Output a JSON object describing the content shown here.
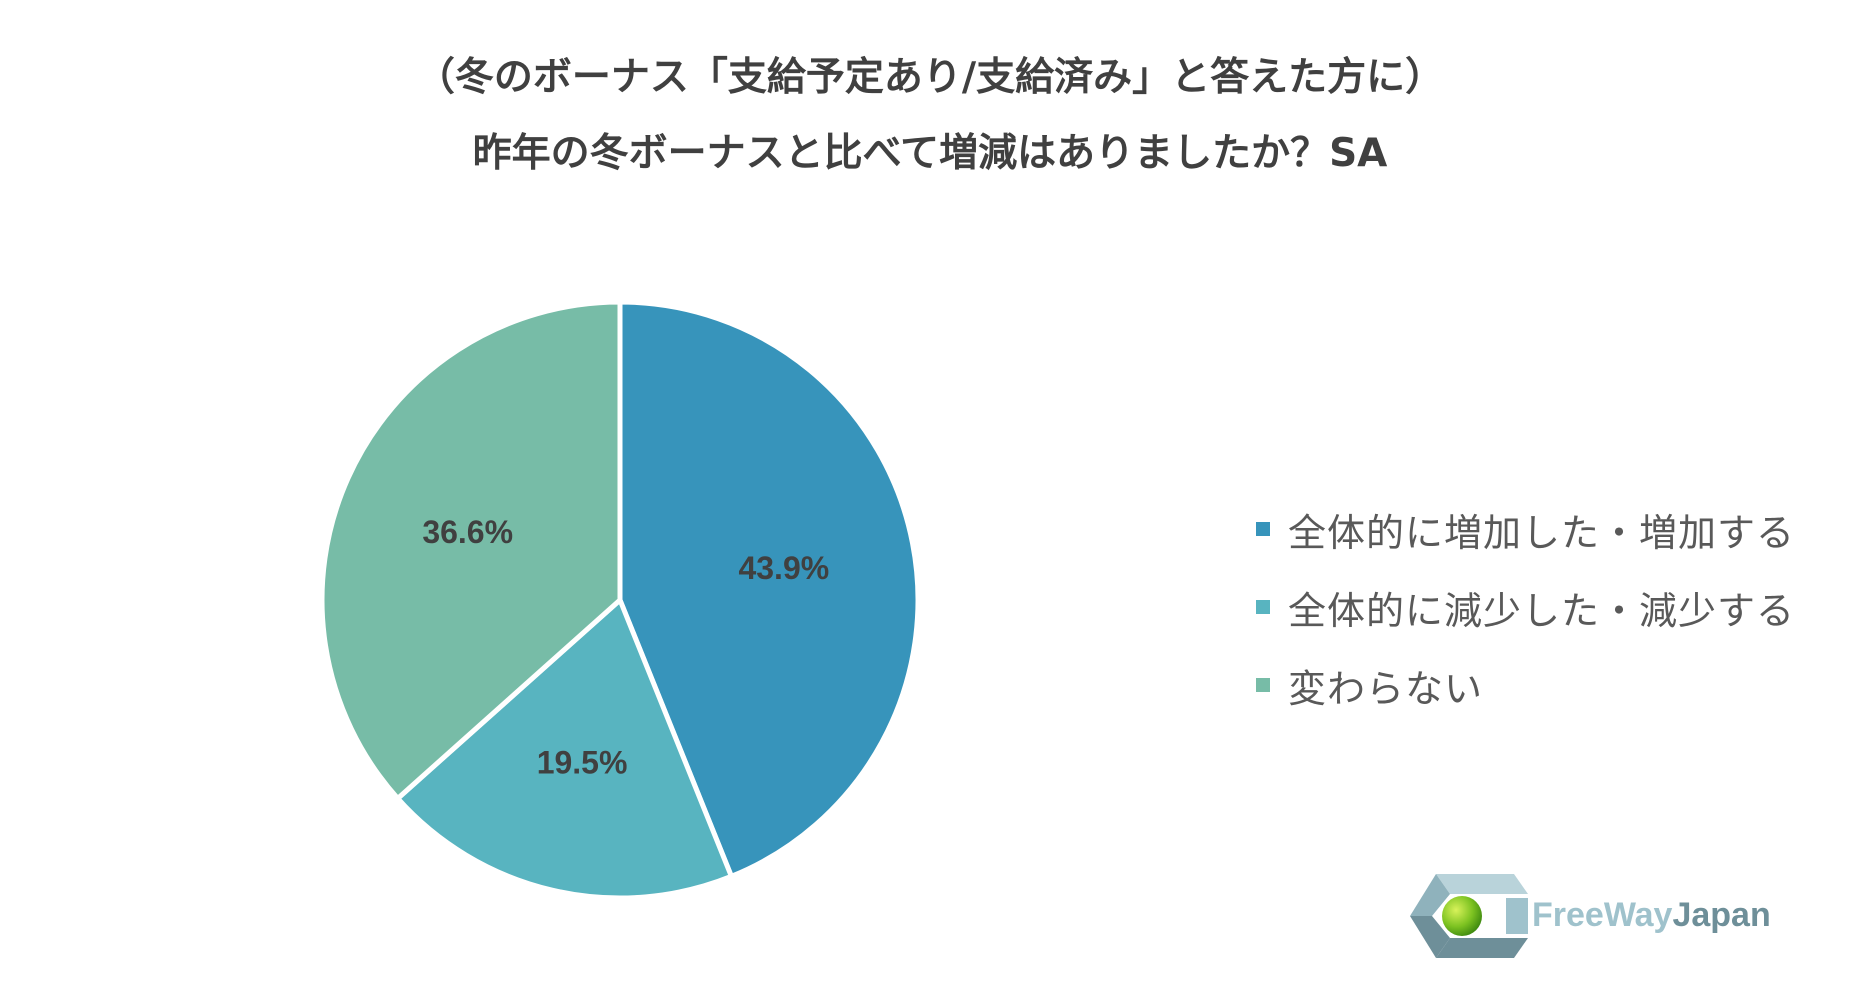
{
  "title": {
    "line1": "（冬のボーナス「支給予定あり/支給済み」と答えた方に）",
    "line2": "昨年の冬ボーナスと比べて増減はありましたか？SA"
  },
  "chart_data": {
    "type": "pie",
    "start_angle_deg": 0,
    "direction": "clockwise",
    "slices": [
      {
        "name": "全体的に増加した・増加する",
        "value": 43.9,
        "label": "43.9%",
        "color": "#3794bb"
      },
      {
        "name": "全体的に減少した・減少する",
        "value": 19.5,
        "label": "19.5%",
        "color": "#58b4c0"
      },
      {
        "name": "変わらない",
        "value": 36.6,
        "label": "36.6%",
        "color": "#77bca7"
      }
    ],
    "legend_position": "right"
  },
  "logo": {
    "text_part1": "FreeWay",
    "text_part2": "Japan"
  }
}
